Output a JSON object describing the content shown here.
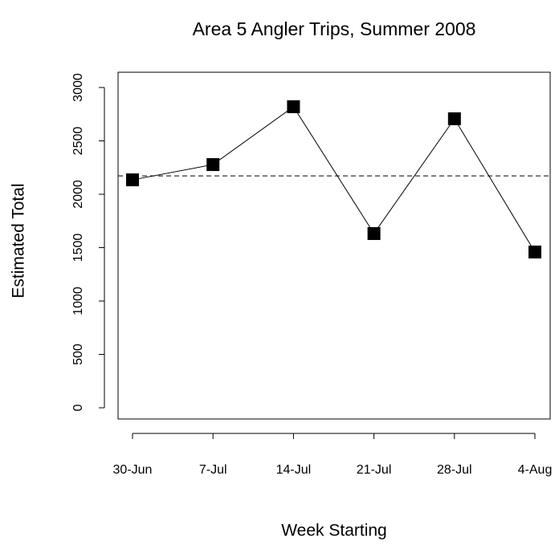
{
  "chart_data": {
    "type": "line",
    "title": "Area 5 Angler Trips, Summer 2008",
    "x_label": "Week Starting",
    "y_label": "Estimated Total",
    "categories": [
      "30-Jun",
      "7-Jul",
      "14-Jul",
      "21-Jul",
      "28-Jul",
      "4-Aug"
    ],
    "series": [
      {
        "name": "Estimated Total",
        "color": "#000000",
        "values": [
          2135,
          2278,
          2820,
          1632,
          2707,
          1459
        ]
      }
    ],
    "reference_line": 2172,
    "ylim": [
      -105,
      3143
    ],
    "yticks": [
      0,
      500,
      1000,
      1500,
      2000,
      2500,
      3000
    ],
    "grid": false
  }
}
